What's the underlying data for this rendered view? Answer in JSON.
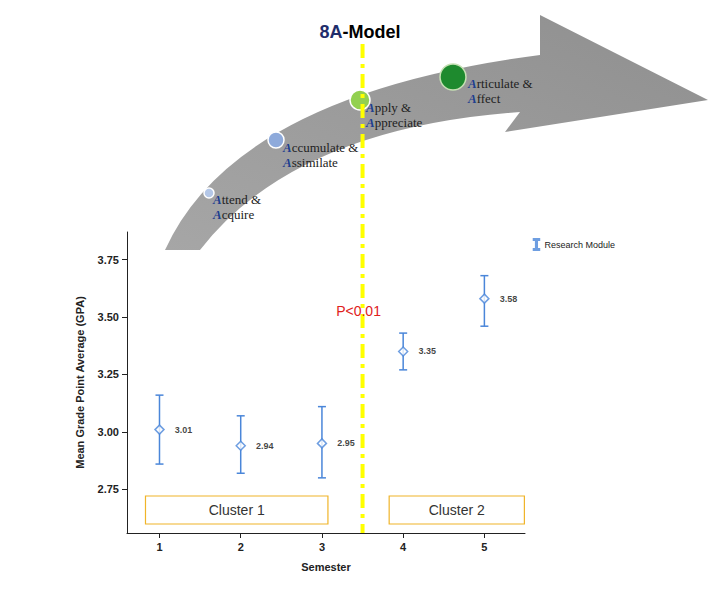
{
  "chart_data": {
    "type": "scatter",
    "title": "8A-Model",
    "stages": [
      "Attend & Acquire",
      "Accumulate & Assimilate",
      "Apply & Appreciate",
      "Articulate & Affect"
    ],
    "x_label": "Semester",
    "y_label": "Mean Grade Point Average (GPA)",
    "x": [
      1,
      2,
      3,
      4,
      5
    ],
    "series": [
      {
        "name": "Research Module",
        "color": "#4a86d9",
        "marker": "diamond",
        "values": [
          3.01,
          2.94,
          2.95,
          3.35,
          3.58
        ],
        "error_low": [
          2.86,
          2.82,
          2.8,
          3.27,
          3.46
        ],
        "error_high": [
          3.16,
          3.07,
          3.11,
          3.43,
          3.68
        ]
      }
    ],
    "xlim": [
      0.6,
      5.5
    ],
    "xticks": [
      1,
      2,
      3,
      4,
      5
    ],
    "ylim": [
      2.56,
      3.87
    ],
    "yticks": [
      2.75,
      {
        "value": 3,
        "label": "3.00"
      },
      3.25,
      {
        "value": 3.5,
        "label": "3.50"
      },
      3.75
    ],
    "data_labels": true,
    "grid": false,
    "legend": "upper right",
    "annotations": [
      {
        "text": "P<0.01",
        "x": 3.5
      }
    ],
    "clusters": [
      {
        "label": "Cluster 1",
        "x": [
          1,
          3
        ]
      },
      {
        "label": "Cluster 2",
        "x": [
          4,
          5
        ]
      }
    ]
  }
}
